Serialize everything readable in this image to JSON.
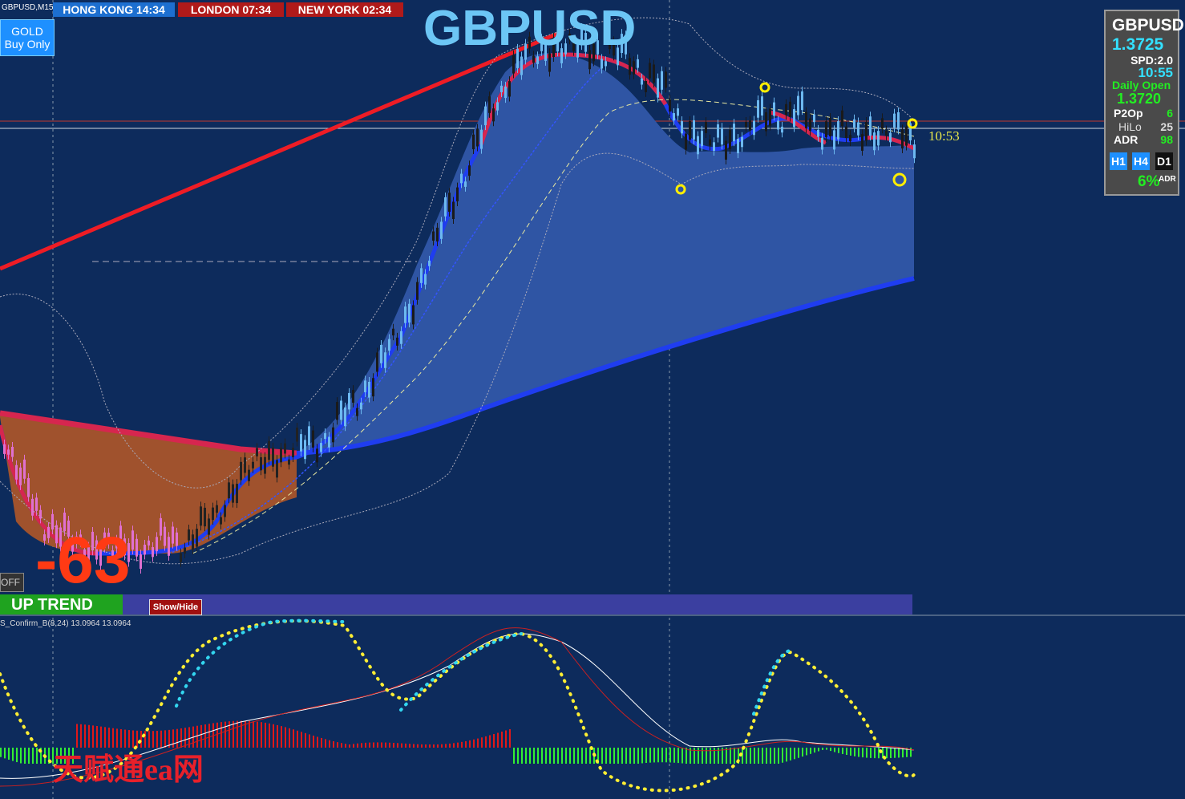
{
  "chart_window": {
    "symbol_label": "GBPUSD,M15",
    "sessions": [
      "HONG KONG 14:34",
      "LONDON 07:34",
      "NEW YORK 02:34"
    ],
    "title": "GBPUSD",
    "gold_button": [
      "GOLD",
      "Buy Only"
    ],
    "price_time": "10:53",
    "score": "-63",
    "off_button": "OFF",
    "trend_label": "UP TREND",
    "show_hide_button": "Show/Hide"
  },
  "info_panel": {
    "symbol": "GBPUSD",
    "price": "1.3725",
    "spread": "SPD:2.0",
    "timer": "10:55",
    "daily_open_label": "Daily Open",
    "daily_open": "1.3720",
    "rows": [
      [
        "P2Op",
        "6"
      ],
      [
        "HiLo",
        "25"
      ],
      [
        "ADR",
        "98"
      ]
    ],
    "timeframes": [
      "H1",
      "H4",
      "D1"
    ],
    "adr_percent": "6%",
    "adr_label": "ADR"
  },
  "indicator_pane": {
    "label": "S_Confirm_B(8,24) 13.0964 13.0964"
  },
  "watermark": "天赋通ea网"
}
